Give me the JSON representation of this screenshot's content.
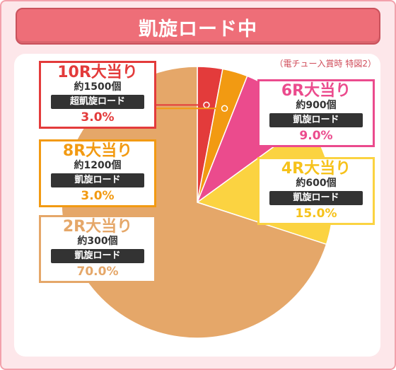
{
  "title": "凱旋ロード中",
  "note": "（電チュー入賞時 特図2）",
  "chart_data": {
    "type": "pie",
    "slices": [
      {
        "rounds": "10R大当り",
        "balls": "約1500個",
        "mode": "超凱旋ロード",
        "percent_label": "3.0%",
        "value": 3.0,
        "color": "#e33b3b"
      },
      {
        "rounds": "8R大当り",
        "balls": "約1200個",
        "mode": "凱旋ロード",
        "percent_label": "3.0%",
        "value": 3.0,
        "color": "#f29a12"
      },
      {
        "rounds": "6R大当り",
        "balls": "約900個",
        "mode": "凱旋ロード",
        "percent_label": "9.0%",
        "value": 9.0,
        "color": "#eb4b8d"
      },
      {
        "rounds": "4R大当り",
        "balls": "約600個",
        "mode": "凱旋ロード",
        "percent_label": "15.0%",
        "value": 15.0,
        "color": "#fbd341"
      },
      {
        "rounds": "2R大当り",
        "balls": "約300個",
        "mode": "凱旋ロード",
        "percent_label": "70.0%",
        "value": 70.0,
        "color": "#e5a769"
      }
    ]
  }
}
